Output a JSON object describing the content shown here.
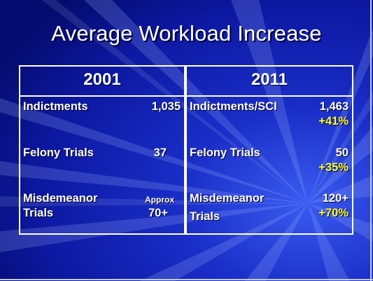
{
  "slide": {
    "title": "Average Workload Increase"
  },
  "table": {
    "col_2001": {
      "header": "2001",
      "rows": [
        {
          "label": "Indictments",
          "value": "1,035"
        },
        {
          "label": "Felony Trials",
          "value": "37"
        },
        {
          "label_line1": "Misdemeanor",
          "label_line2": "Trials",
          "value_note": "Approx",
          "value": "70+"
        }
      ]
    },
    "col_2011": {
      "header": "2011",
      "rows": [
        {
          "label": "Indictments/SCI",
          "value": "1,463",
          "change": "+41%"
        },
        {
          "label": "Felony Trials",
          "value": "50",
          "change": "+35%"
        },
        {
          "label_line1": "Misdemeanor",
          "label_line2": "Trials",
          "value": "120+",
          "change": "+70%"
        }
      ]
    }
  },
  "colors": {
    "background": "#0a1590",
    "text": "#ffffff",
    "highlight": "#ffff33",
    "border": "#ffffff"
  }
}
